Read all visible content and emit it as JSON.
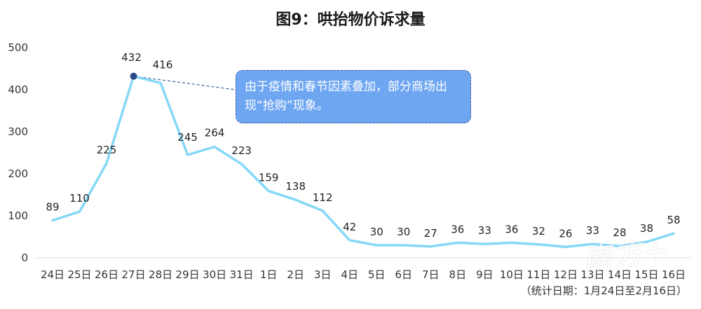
{
  "chart_data": {
    "type": "line",
    "title": "图9：哄抬物价诉求量",
    "categories": [
      "24日",
      "25日",
      "26日",
      "27日",
      "28日",
      "29日",
      "30日",
      "31日",
      "1日",
      "2日",
      "3日",
      "4日",
      "5日",
      "6日",
      "7日",
      "8日",
      "9日",
      "10日",
      "11日",
      "12日",
      "13日",
      "14日",
      "15日",
      "16日"
    ],
    "values": [
      89,
      110,
      225,
      432,
      416,
      245,
      264,
      223,
      159,
      138,
      112,
      42,
      30,
      30,
      27,
      36,
      33,
      36,
      32,
      26,
      33,
      28,
      38,
      58
    ],
    "yticks": [
      0,
      100,
      200,
      300,
      400,
      500
    ],
    "ylim": [
      0,
      500
    ],
    "grid": false,
    "line_color": "#86d8f7",
    "marker_color": "#2b4a8c",
    "annotation": {
      "text": "由于疫情和春节因素叠加，部分商场出现“抢购”现象。",
      "target_index": 3,
      "box_color": "#6ea6f2"
    },
    "footnote": "（统计日期：1月24日至2月16日）"
  },
  "watermark": "南方+"
}
